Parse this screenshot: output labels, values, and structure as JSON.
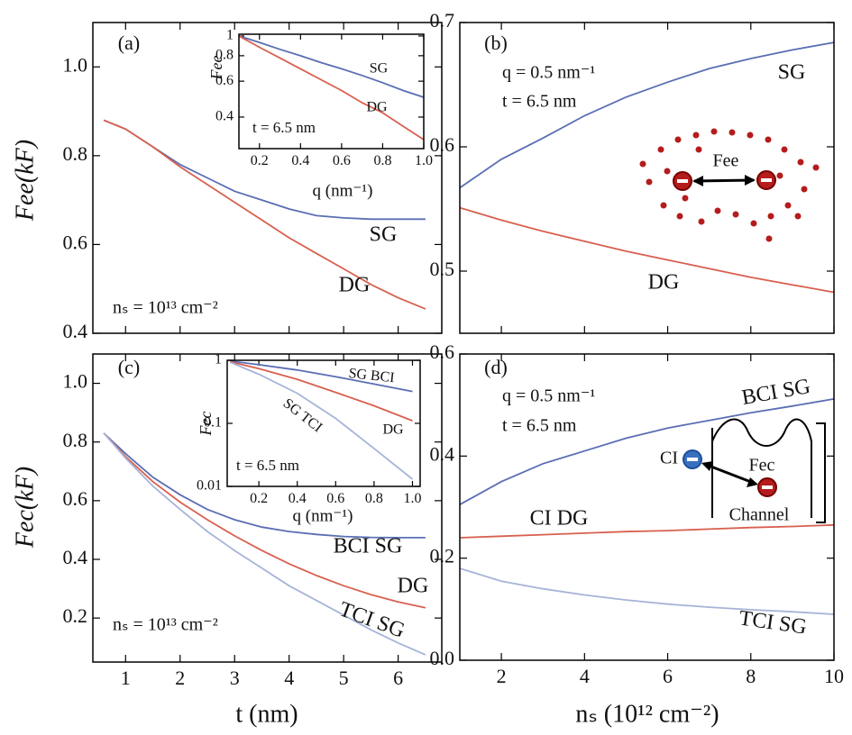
{
  "chart_data": [
    {
      "type": "line",
      "panel_label": "(a)",
      "ylabel": "Fee(kF)",
      "x": [
        0.6,
        1,
        1.5,
        2,
        2.5,
        3,
        3.5,
        4,
        4.5,
        5,
        5.5,
        6,
        6.5
      ],
      "series": [
        {
          "name": "SG",
          "color": "#5a6eb3",
          "values": [
            0.88,
            0.86,
            0.82,
            0.78,
            0.75,
            0.72,
            0.7,
            0.68,
            0.665,
            0.66,
            0.657,
            0.657,
            0.657
          ]
        },
        {
          "name": "DG",
          "color": "#d8604f",
          "values": [
            0.88,
            0.86,
            0.82,
            0.775,
            0.735,
            0.695,
            0.655,
            0.615,
            0.58,
            0.545,
            0.51,
            0.48,
            0.455
          ]
        }
      ],
      "xlim": [
        0.4,
        6.8
      ],
      "ylim": [
        0.4,
        1.1
      ],
      "xticks": [
        1,
        2,
        3,
        4,
        5,
        6
      ],
      "xtick_labels": false,
      "yticks": [
        0.4,
        0.6,
        0.8,
        {
          "value": 1,
          "label": "1.0"
        }
      ],
      "annotations": [
        "nₛ = 10¹³ cm⁻²"
      ]
    },
    {
      "type": "line",
      "ylog": true,
      "ylabel": "Fee",
      "xlabel": "q (nm⁻¹)",
      "x": [
        0.1,
        0.2,
        0.3,
        0.4,
        0.5,
        0.6,
        0.7,
        0.8,
        0.9,
        1.0
      ],
      "series": [
        {
          "name": "SG",
          "color": "#5a6eb3",
          "values": [
            1.0,
            0.93,
            0.86,
            0.8,
            0.74,
            0.69,
            0.64,
            0.59,
            0.54,
            0.5
          ]
        },
        {
          "name": "DG",
          "color": "#d8604f",
          "values": [
            1.0,
            0.88,
            0.78,
            0.69,
            0.61,
            0.54,
            0.47,
            0.42,
            0.36,
            0.31
          ]
        }
      ],
      "xlim": [
        0.1,
        1.0
      ],
      "ylim": [
        0.28,
        1.02
      ],
      "xticks": [
        0.2,
        0.4,
        0.6,
        0.8,
        {
          "value": 1,
          "label": "1.0"
        }
      ],
      "yticks": [
        0.4,
        0.6,
        0.8,
        1
      ],
      "annotations": [
        "t = 6.5 nm"
      ]
    },
    {
      "type": "line",
      "panel_label": "(b)",
      "x": [
        1,
        2,
        3,
        4,
        5,
        6,
        7,
        8,
        9,
        10
      ],
      "series": [
        {
          "name": "SG",
          "color": "#5a6eb3",
          "values": [
            0.567,
            0.59,
            0.607,
            0.625,
            0.64,
            0.652,
            0.663,
            0.671,
            0.678,
            0.684
          ]
        },
        {
          "name": "DG",
          "color": "#d8604f",
          "values": [
            0.551,
            0.541,
            0.532,
            0.524,
            0.516,
            0.509,
            0.502,
            0.495,
            0.489,
            0.483
          ]
        }
      ],
      "xlim": [
        1,
        10
      ],
      "ylim": [
        0.45,
        0.7
      ],
      "xticks": [
        2,
        4,
        6,
        8,
        10
      ],
      "xtick_labels": false,
      "yticks": [
        0.5,
        0.6,
        0.7
      ],
      "annotations": [
        "q = 0.5 nm⁻¹",
        "t = 6.5 nm",
        "Fee"
      ]
    },
    {
      "type": "line",
      "panel_label": "(c)",
      "ylabel": "Fec(kF)",
      "xlabel": "t (nm)",
      "x": [
        0.6,
        1,
        1.5,
        2,
        2.5,
        3,
        3.5,
        4,
        4.5,
        5,
        5.5,
        6,
        6.5
      ],
      "series": [
        {
          "name": "BCI SG",
          "color": "#5a6eb3",
          "values": [
            0.83,
            0.76,
            0.68,
            0.62,
            0.57,
            0.535,
            0.51,
            0.495,
            0.485,
            0.478,
            0.475,
            0.474,
            0.474
          ]
        },
        {
          "name": "DG",
          "color": "#d8604f",
          "values": [
            0.83,
            0.75,
            0.665,
            0.595,
            0.535,
            0.48,
            0.43,
            0.385,
            0.345,
            0.31,
            0.28,
            0.255,
            0.235
          ]
        },
        {
          "name": "TCI SG",
          "color": "#a7b4d8",
          "values": [
            0.83,
            0.745,
            0.65,
            0.57,
            0.495,
            0.43,
            0.37,
            0.31,
            0.26,
            0.21,
            0.16,
            0.115,
            0.075
          ]
        }
      ],
      "xlim": [
        0.4,
        6.8
      ],
      "ylim": [
        0.05,
        1.1
      ],
      "xticks": [
        1,
        2,
        3,
        4,
        5,
        6
      ],
      "yticks": [
        0.2,
        0.4,
        0.6,
        0.8,
        {
          "value": 1,
          "label": "1.0"
        }
      ],
      "annotations": [
        "nₛ = 10¹³ cm⁻²"
      ]
    },
    {
      "type": "line",
      "ylog": true,
      "ylabel": "Fec",
      "xlabel": "q (nm⁻¹)",
      "x": [
        0.05,
        0.2,
        0.4,
        0.6,
        0.8,
        1.0
      ],
      "series": [
        {
          "name": "SG BCI",
          "color": "#5a6eb3",
          "values": [
            0.97,
            0.85,
            0.7,
            0.55,
            0.42,
            0.32
          ]
        },
        {
          "name": "DG",
          "color": "#d8604f",
          "values": [
            0.95,
            0.74,
            0.5,
            0.31,
            0.19,
            0.11
          ]
        },
        {
          "name": "SG TCI",
          "color": "#a7b4d8",
          "values": [
            0.93,
            0.6,
            0.3,
            0.12,
            0.04,
            0.013
          ]
        }
      ],
      "xlim": [
        0.035,
        1.04
      ],
      "ylim": [
        0.01,
        1
      ],
      "xticks": [
        0.2,
        0.4,
        0.6,
        0.8,
        {
          "value": 1,
          "label": "1.0"
        }
      ],
      "yticks": [
        0.01,
        0.1,
        1
      ],
      "annotations": [
        "t = 6.5 nm"
      ]
    },
    {
      "type": "line",
      "panel_label": "(d)",
      "xlabel": "nₛ (10¹² cm⁻²)",
      "x": [
        1,
        2,
        3,
        4,
        5,
        6,
        7,
        8,
        9,
        10
      ],
      "series": [
        {
          "name": "BCI SG",
          "color": "#5a6eb3",
          "values": [
            0.305,
            0.35,
            0.385,
            0.41,
            0.435,
            0.455,
            0.47,
            0.485,
            0.498,
            0.512
          ]
        },
        {
          "name": "CI DG",
          "color": "#d8604f",
          "values": [
            0.24,
            0.243,
            0.246,
            0.249,
            0.252,
            0.254,
            0.257,
            0.26,
            0.262,
            0.265
          ]
        },
        {
          "name": "TCI SG",
          "color": "#a7b4d8",
          "values": [
            0.18,
            0.155,
            0.14,
            0.128,
            0.118,
            0.11,
            0.104,
            0.099,
            0.095,
            0.09
          ]
        }
      ],
      "xlim": [
        1,
        10
      ],
      "ylim": [
        0,
        0.6
      ],
      "xticks": [
        2,
        4,
        6,
        8,
        10
      ],
      "yticks": [
        {
          "value": 0,
          "label": "0.0"
        },
        0.2,
        0.4,
        0.6
      ],
      "annotations": [
        "q = 0.5 nm⁻¹",
        "t = 6.5 nm",
        "CI",
        "Fec",
        "Channel"
      ]
    }
  ]
}
